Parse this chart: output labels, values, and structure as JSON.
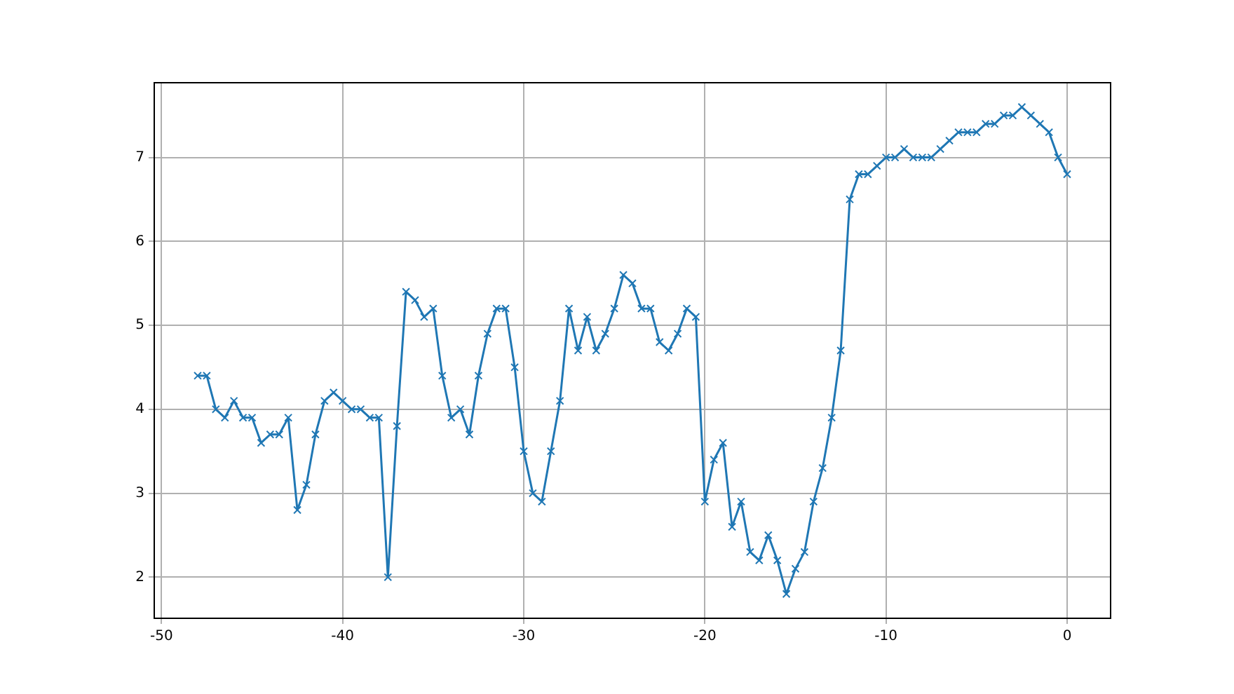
{
  "chart_data": {
    "type": "line",
    "x": [
      -48,
      -47.5,
      -47,
      -46.5,
      -46,
      -45.5,
      -45,
      -44.5,
      -44,
      -43.5,
      -43,
      -42.5,
      -42,
      -41.5,
      -41,
      -40.5,
      -40,
      -39.5,
      -39,
      -38.5,
      -38,
      -37.5,
      -37,
      -36.5,
      -36,
      -35.5,
      -35,
      -34.5,
      -34,
      -33.5,
      -33,
      -32.5,
      -32,
      -31.5,
      -31,
      -30.5,
      -30,
      -29.5,
      -29,
      -28.5,
      -28,
      -27.5,
      -27,
      -26.5,
      -26,
      -25.5,
      -25,
      -24.5,
      -24,
      -23.5,
      -23,
      -22.5,
      -22,
      -21.5,
      -21,
      -20.5,
      -20,
      -19.5,
      -19,
      -18.5,
      -18,
      -17.5,
      -17,
      -16.5,
      -16,
      -15.5,
      -15,
      -14.5,
      -14,
      -13.5,
      -13,
      -12.5,
      -12,
      -11.5,
      -11,
      -10.5,
      -10,
      -9.5,
      -9,
      -8.5,
      -8,
      -7.5,
      -7,
      -6.5,
      -6,
      -5.5,
      -5,
      -4.5,
      -4,
      -3.5,
      -3,
      -2.5,
      -2,
      -1.5,
      -1,
      -0.5,
      0
    ],
    "series": [
      {
        "color": "#1f77b4",
        "values": [
          4.4,
          4.4,
          4.0,
          3.9,
          4.1,
          3.9,
          3.9,
          3.6,
          3.7,
          3.7,
          3.9,
          2.8,
          3.1,
          3.7,
          4.1,
          4.2,
          4.1,
          4.0,
          4.0,
          3.9,
          3.9,
          2.0,
          3.8,
          5.4,
          5.3,
          5.1,
          5.2,
          4.4,
          3.9,
          4.0,
          3.7,
          4.4,
          4.9,
          5.2,
          5.2,
          4.5,
          3.5,
          3.0,
          2.9,
          3.5,
          4.1,
          5.2,
          4.7,
          5.1,
          4.7,
          4.9,
          5.2,
          5.6,
          5.5,
          5.2,
          5.2,
          4.8,
          4.7,
          4.9,
          5.2,
          5.1,
          2.9,
          3.4,
          3.6,
          2.6,
          2.9,
          2.3,
          2.2,
          2.5,
          2.2,
          1.8,
          2.1,
          2.3,
          2.9,
          3.3,
          3.9,
          4.7,
          6.5,
          6.8,
          6.8,
          6.9,
          7.0,
          7.0,
          7.1,
          7.0,
          7.0,
          7.0,
          7.1,
          7.2,
          7.3,
          7.3,
          7.3,
          7.4,
          7.4,
          7.5,
          7.5,
          7.6,
          7.5,
          7.4,
          7.3,
          7.0,
          6.8
        ]
      }
    ],
    "xlim": [
      -50.4,
      2.4
    ],
    "ylim": [
      1.51,
      7.89
    ],
    "xticks": [
      -50,
      -40,
      -30,
      -20,
      -10,
      0
    ],
    "yticks": [
      2,
      3,
      4,
      5,
      6,
      7
    ],
    "grid": true,
    "marker": "cross",
    "line_style": "solid",
    "legend": false
  }
}
